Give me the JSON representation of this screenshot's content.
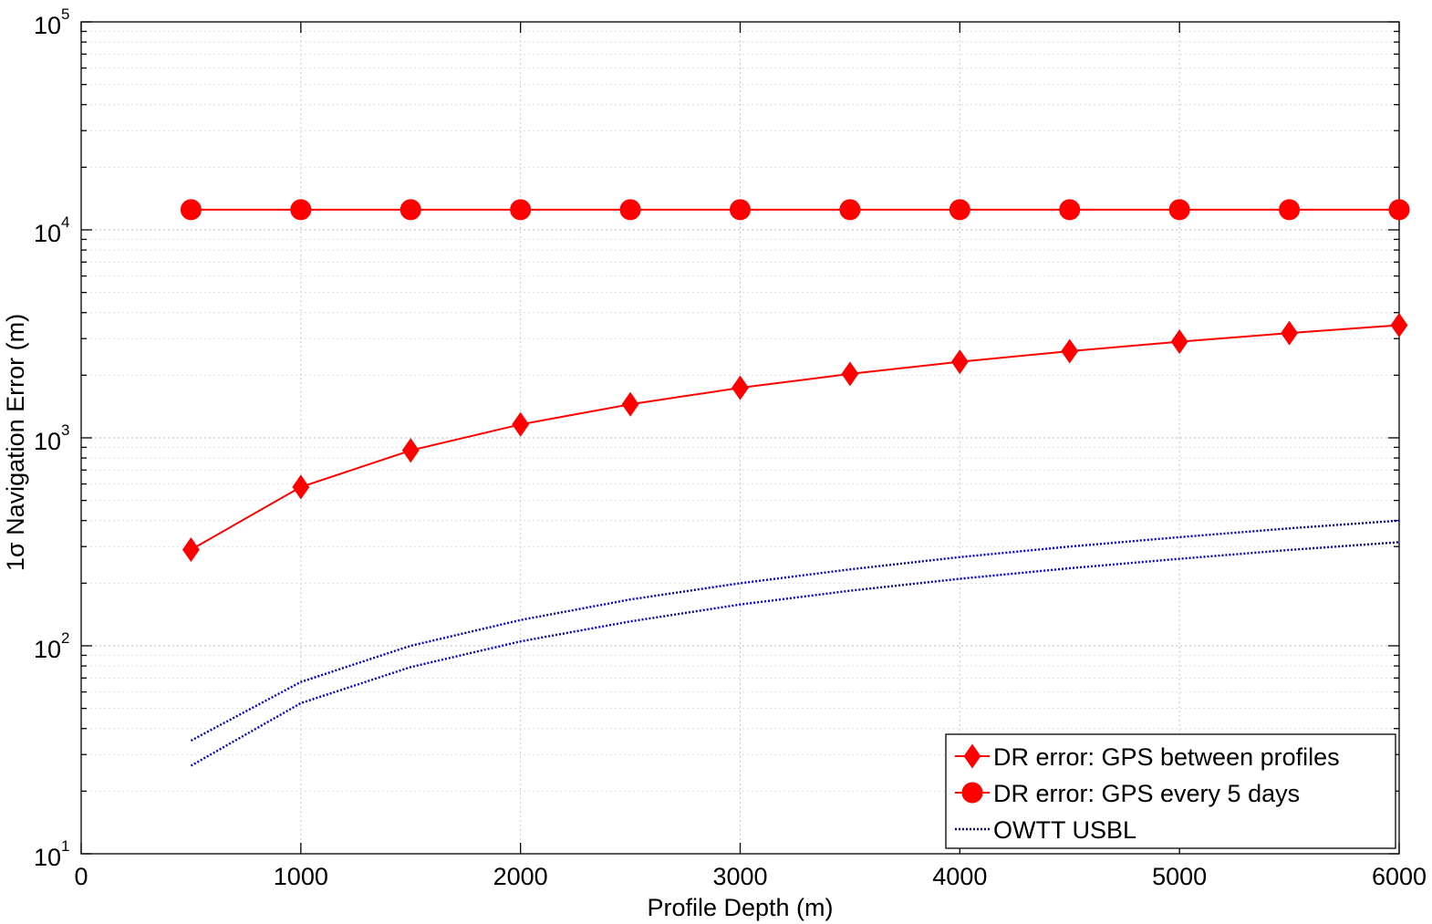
{
  "chart_data": {
    "type": "line",
    "title": "",
    "xlabel": "Profile Depth (m)",
    "ylabel": "1σ Navigation Error (m)",
    "xlim": [
      0,
      6000
    ],
    "ylim": [
      10,
      100000
    ],
    "yscale": "log",
    "grid": true,
    "legend_position": "bottom-right",
    "x_ticks": [
      {
        "value": 0,
        "label": "0"
      },
      {
        "value": 1000,
        "label": "1000"
      },
      {
        "value": 2000,
        "label": "2000"
      },
      {
        "value": 3000,
        "label": "3000"
      },
      {
        "value": 4000,
        "label": "4000"
      },
      {
        "value": 5000,
        "label": "5000"
      },
      {
        "value": 6000,
        "label": "6000"
      }
    ],
    "y_ticks": [
      {
        "value": 10,
        "base": "10",
        "exp": "1"
      },
      {
        "value": 100,
        "base": "10",
        "exp": "2"
      },
      {
        "value": 1000,
        "base": "10",
        "exp": "3"
      },
      {
        "value": 10000,
        "base": "10",
        "exp": "4"
      },
      {
        "value": 100000,
        "base": "10",
        "exp": "5"
      }
    ],
    "series": [
      {
        "name": "DR error: GPS between profiles",
        "color": "#ff0000",
        "marker": "diamond",
        "line_style": "solid",
        "x": [
          500,
          1000,
          1500,
          2000,
          2500,
          3000,
          3500,
          4000,
          4500,
          5000,
          5500,
          6000
        ],
        "y": [
          290,
          580,
          870,
          1160,
          1450,
          1740,
          2030,
          2320,
          2610,
          2900,
          3190,
          3480
        ]
      },
      {
        "name": "DR error: GPS every 5 days",
        "color": "#ff0000",
        "marker": "circle",
        "line_style": "solid",
        "x": [
          500,
          1000,
          1500,
          2000,
          2500,
          3000,
          3500,
          4000,
          4500,
          5000,
          5500,
          6000
        ],
        "y": [
          12500,
          12500,
          12500,
          12500,
          12500,
          12500,
          12500,
          12500,
          12500,
          12500,
          12500,
          12500
        ]
      },
      {
        "name": "OWTT USBL",
        "color": "#0000cc",
        "marker": "none",
        "line_style": "dotted",
        "x": [
          500,
          1000,
          1500,
          2000,
          2500,
          3000,
          3500,
          4000,
          4500,
          5000,
          5500,
          6000
        ],
        "y": [
          35,
          67,
          100,
          133,
          167,
          200,
          233,
          267,
          300,
          333,
          367,
          400
        ]
      },
      {
        "name": "",
        "color": "#0000cc",
        "marker": "none",
        "line_style": "dotted",
        "show_in_legend": false,
        "x": [
          500,
          1000,
          1500,
          2000,
          2500,
          3000,
          3500,
          4000,
          4500,
          5000,
          5500,
          6000
        ],
        "y": [
          26.5,
          53,
          79,
          105,
          131,
          158,
          184,
          210,
          236,
          262,
          289,
          315
        ]
      }
    ]
  }
}
